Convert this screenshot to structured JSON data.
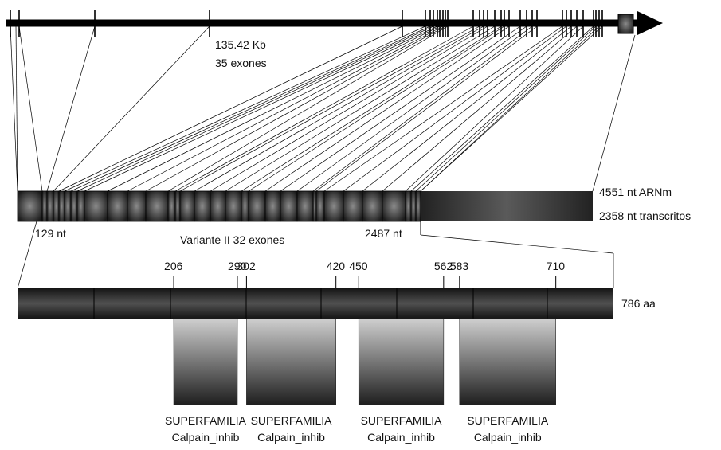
{
  "gene": {
    "size_label": "135.42 Kb",
    "exon_count_label": "35 exones"
  },
  "transcript": {
    "mrna_label": "4551 nt  ARNm",
    "transcribed_label": "2358 nt transcritos",
    "start_label": "129 nt",
    "end_label": "2487 nt",
    "variant_label": "Variante II  32 exones",
    "exon_count": 32
  },
  "protein": {
    "length_label": "786 aa",
    "length": 786,
    "positions": [
      "206",
      "290",
      "302",
      "420",
      "450",
      "562",
      "583",
      "710"
    ],
    "domains": [
      {
        "start": 206,
        "end": 290,
        "name_line1": "SUPERFAMILIA",
        "name_line2": "Calpain_inhib"
      },
      {
        "start": 302,
        "end": 420,
        "name_line1": "SUPERFAMILIA",
        "name_line2": "Calpain_inhib"
      },
      {
        "start": 450,
        "end": 562,
        "name_line1": "SUPERFAMILIA",
        "name_line2": "Calpain_inhib"
      },
      {
        "start": 583,
        "end": 710,
        "name_line1": "SUPERFAMILIA",
        "name_line2": "Calpain_inhib"
      }
    ]
  },
  "colors": {
    "line": "#000000",
    "bar_dark": "#1a1a1a",
    "bar_mid": "#5c5c5c",
    "domain_light": "#c8c8c8",
    "domain_dark": "#262626"
  }
}
